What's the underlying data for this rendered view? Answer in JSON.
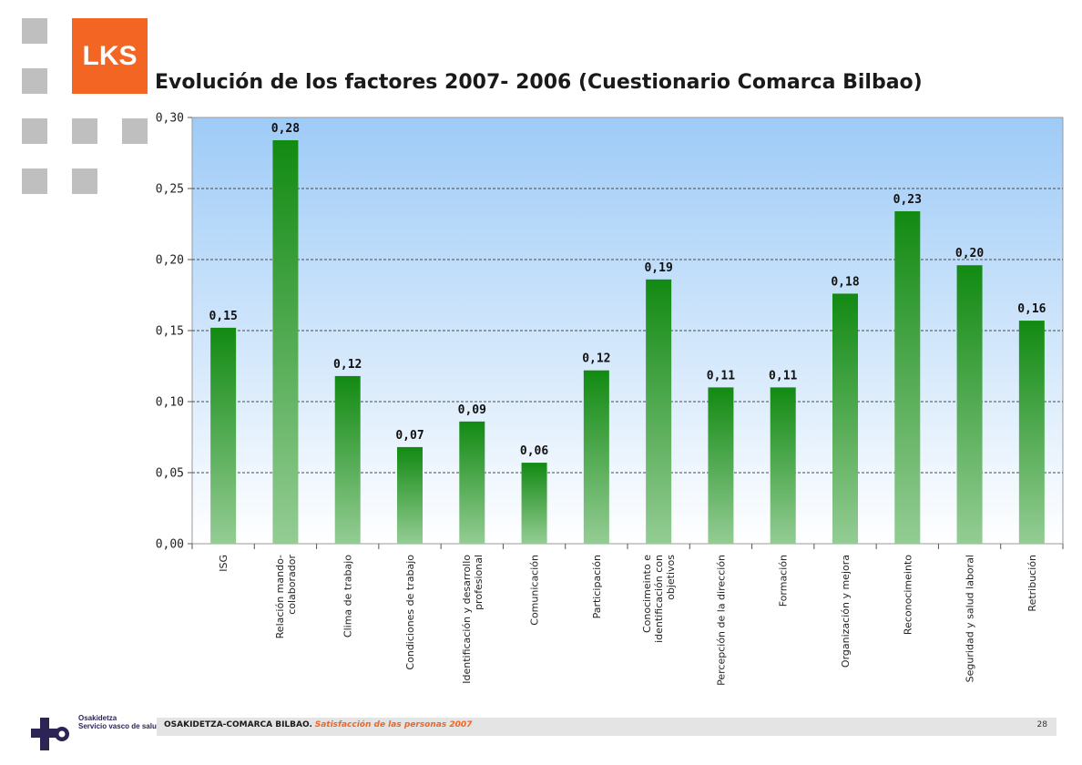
{
  "branding": {
    "logo_text": "LKS",
    "logo_color": "#f26522",
    "partner_logo_line1": "Osakidetza",
    "partner_logo_line2": "Servicio vasco de salud"
  },
  "footer": {
    "org": "OSAKIDETZA-COMARCA BILBAO.",
    "subtitle": "Satisfacción de las personas 2007",
    "page": "28"
  },
  "chart_data": {
    "type": "bar",
    "title": "Evolución de los factores 2007- 2006 (Cuestionario Comarca Bilbao)",
    "xlabel": "",
    "ylabel": "",
    "ylim": [
      0,
      0.3
    ],
    "yticks": [
      "0,00",
      "0,05",
      "0,10",
      "0,15",
      "0,20",
      "0,25",
      "0,30"
    ],
    "grid": true,
    "categories": [
      "ISG",
      "Relación mando-\ncolaborador",
      "Clima de trabajo",
      "Condiciones de trabajo",
      "Identificación y desarrollo\nprofesional",
      "Comunicación",
      "Participación",
      "Conocimeinto e\nidentificación con\nobjetivos",
      "Percepción de la dirección",
      "Formación",
      "Organización y mejora",
      "Reconocimeinto",
      "Seguridad y salud laboral",
      "Retribución"
    ],
    "values": [
      0.152,
      0.284,
      0.118,
      0.068,
      0.086,
      0.057,
      0.122,
      0.186,
      0.11,
      0.11,
      0.176,
      0.234,
      0.196,
      0.157
    ],
    "labels": [
      "0,15",
      "0,28",
      "0,12",
      "0,07",
      "0,09",
      "0,06",
      "0,12",
      "0,19",
      "0,11",
      "0,11",
      "0,18",
      "0,23",
      "0,20",
      "0,16"
    ],
    "bar_color_top": "#128a12",
    "bar_color_bottom": "#94cc94",
    "plot_bg_top": "#9ecbf7",
    "plot_bg_bottom": "#ffffff"
  }
}
